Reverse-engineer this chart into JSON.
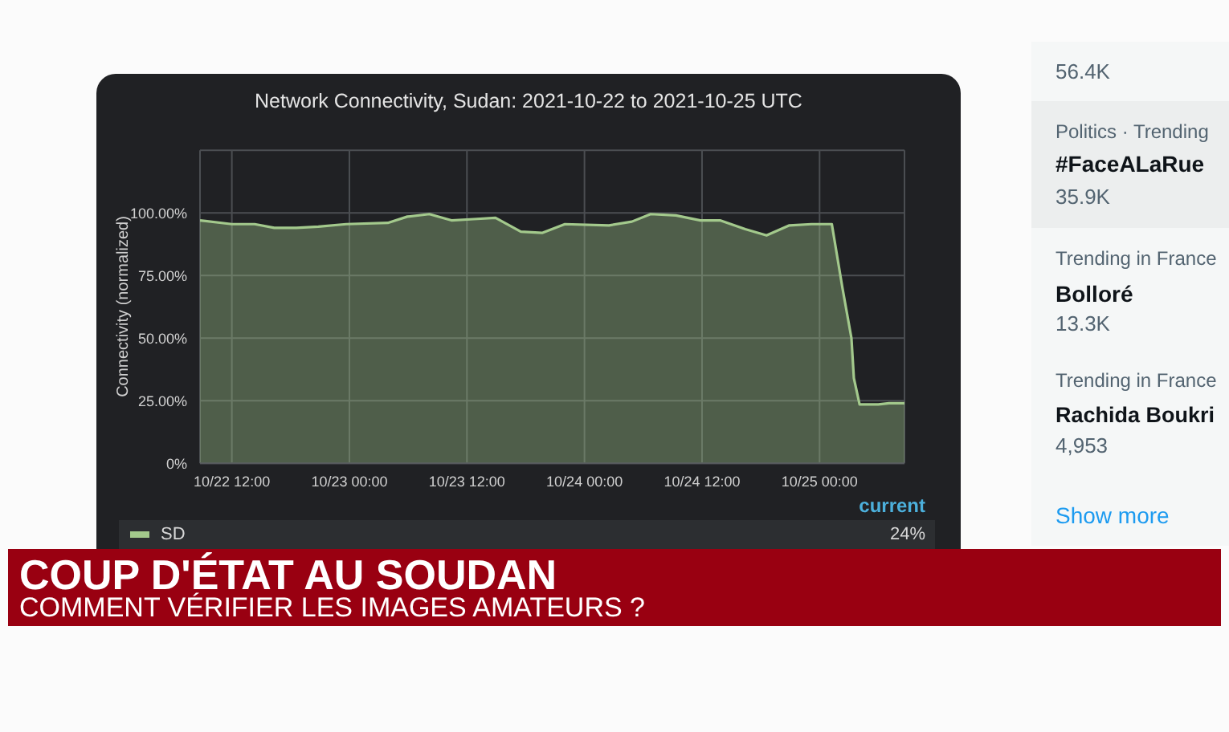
{
  "chart_data": {
    "type": "area",
    "title": "Network Connectivity, Sudan: 2021-10-22 to 2021-10-25 UTC",
    "ylabel": "Connectivity (normalized)",
    "x": [
      "2021-10-22T08:45",
      "2021-10-22T12:00",
      "2021-10-22T14:20",
      "2021-10-22T16:20",
      "2021-10-22T18:35",
      "2021-10-22T20:50",
      "2021-10-22T23:40",
      "2021-10-23T03:55",
      "2021-10-23T05:55",
      "2021-10-23T08:10",
      "2021-10-23T10:25",
      "2021-10-23T12:40",
      "2021-10-23T14:55",
      "2021-10-23T17:30",
      "2021-10-23T19:40",
      "2021-10-23T22:00",
      "2021-10-24T02:30",
      "2021-10-24T04:50",
      "2021-10-24T06:45",
      "2021-10-24T09:20",
      "2021-10-24T11:50",
      "2021-10-24T13:50",
      "2021-10-24T16:25",
      "2021-10-24T18:35",
      "2021-10-24T20:55",
      "2021-10-24T23:10",
      "2021-10-25T01:15",
      "2021-10-25T02:20",
      "2021-10-25T03:15",
      "2021-10-25T03:30",
      "2021-10-25T04:05",
      "2021-10-25T06:00",
      "2021-10-25T07:05",
      "2021-10-25T08:40"
    ],
    "series": [
      {
        "name": "SD",
        "color": "#a3c98c",
        "values": [
          97,
          95.5,
          95.5,
          94,
          94,
          94.5,
          95.5,
          96,
          98.5,
          99.5,
          97,
          97.5,
          98,
          92.5,
          92,
          95.5,
          95,
          96.5,
          99.5,
          99,
          97,
          97,
          93.5,
          91,
          95,
          95.5,
          95.5,
          70,
          50,
          34,
          23.5,
          23.5,
          24,
          24
        ]
      }
    ],
    "xlim": [
      "2021-10-22T08:45",
      "2021-10-25T08:40"
    ],
    "xticks": [
      {
        "value": "2021-10-22T12:00",
        "label": "10/22 12:00"
      },
      {
        "value": "2021-10-23T00:00",
        "label": "10/23 00:00"
      },
      {
        "value": "2021-10-23T12:00",
        "label": "10/23 12:00"
      },
      {
        "value": "2021-10-24T00:00",
        "label": "10/24 00:00"
      },
      {
        "value": "2021-10-24T12:00",
        "label": "10/24 12:00"
      },
      {
        "value": "2021-10-25T00:00",
        "label": "10/25 00:00"
      }
    ],
    "ylim": [
      0,
      125
    ],
    "yticks": [
      {
        "value": 0,
        "label": "0%"
      },
      {
        "value": 25,
        "label": "25.00%"
      },
      {
        "value": 50,
        "label": "50.00%"
      },
      {
        "value": 75,
        "label": "75.00%"
      },
      {
        "value": 100,
        "label": "100.00%"
      },
      {
        "value": 125,
        "label": null
      }
    ],
    "grid": true,
    "legend": "bottom",
    "annotations": [
      "current",
      "24%",
      "COUP D'ÉTAT AU SOUDAN",
      "COMMENT VÉRIFIER LES IMAGES AMATEURS ?",
      "56.4K",
      "Politics · Trending",
      "#FaceALaRue",
      "35.9K",
      "Trending in France",
      "Bolloré",
      "13.3K",
      "Trending in France",
      "Rachida Boukri",
      "4,953",
      "Show more"
    ]
  }
}
